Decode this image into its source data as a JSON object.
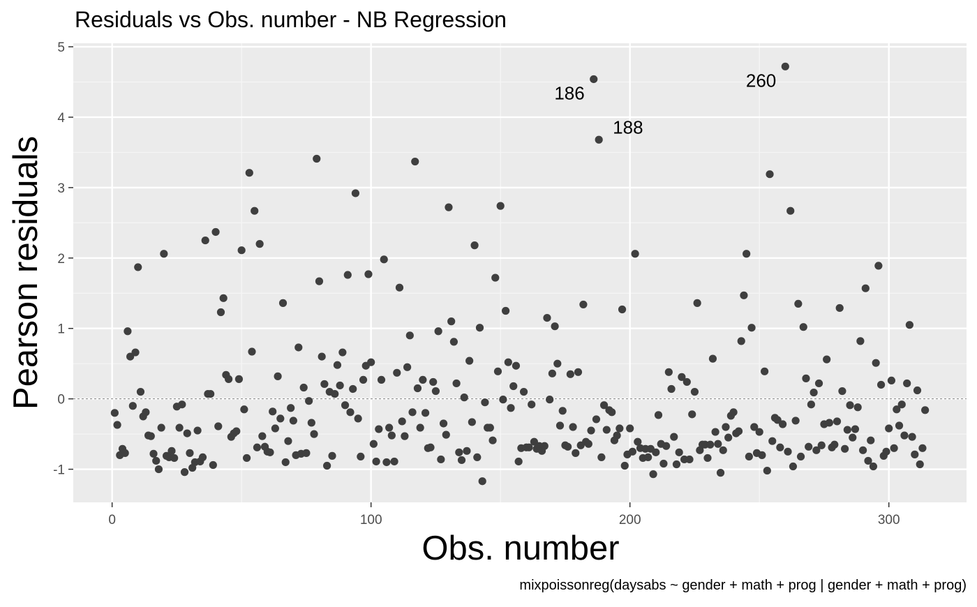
{
  "chart_data": {
    "type": "scatter",
    "title": "Residuals vs Obs. number - NB Regression",
    "xlabel": "Obs. number",
    "ylabel": "Pearson residuals",
    "caption": "mixpoissonreg(daysabs ~ gender + math + prog | gender + math + prog)",
    "xlim": [
      -15,
      330
    ],
    "ylim": [
      -1.47,
      5.05
    ],
    "x_ticks": [
      0,
      100,
      200,
      300
    ],
    "y_ticks": [
      -1,
      0,
      1,
      2,
      3,
      4,
      5
    ],
    "grid": true,
    "reference_line": {
      "y": 0,
      "style": "dashed"
    },
    "colors": {
      "panel_background": "#EBEBEB",
      "grid_major": "#FFFFFF",
      "point": "#3F3F3F",
      "reference_line": "#7F7F7F",
      "tick_text": "#4D4D4D"
    },
    "point_labels": [
      {
        "x": 186,
        "label": "186",
        "position": "below-left"
      },
      {
        "x": 188,
        "label": "188",
        "position": "above-right"
      },
      {
        "x": 260,
        "label": "260",
        "position": "below-left"
      }
    ],
    "points": [
      [
        1,
        -0.2
      ],
      [
        2,
        -0.37
      ],
      [
        3,
        -0.8
      ],
      [
        4,
        -0.71
      ],
      [
        5,
        -0.77
      ],
      [
        6,
        0.96
      ],
      [
        7,
        0.6
      ],
      [
        8,
        -0.1
      ],
      [
        9,
        0.66
      ],
      [
        10,
        1.87
      ],
      [
        11,
        0.1
      ],
      [
        12,
        -0.25
      ],
      [
        13,
        -0.19
      ],
      [
        14,
        -0.52
      ],
      [
        15,
        -0.53
      ],
      [
        16,
        -0.78
      ],
      [
        17,
        -0.88
      ],
      [
        18,
        -1
      ],
      [
        19,
        -0.41
      ],
      [
        20,
        2.06
      ],
      [
        21,
        -0.81
      ],
      [
        22,
        -0.83
      ],
      [
        23,
        -0.74
      ],
      [
        24,
        -0.84
      ],
      [
        25,
        -0.11
      ],
      [
        26,
        -0.41
      ],
      [
        27,
        -0.08
      ],
      [
        28,
        -1.04
      ],
      [
        29,
        -0.49
      ],
      [
        30,
        -0.77
      ],
      [
        31,
        -0.98
      ],
      [
        32,
        -0.9
      ],
      [
        33,
        -0.45
      ],
      [
        34,
        -0.89
      ],
      [
        35,
        -0.83
      ],
      [
        36,
        2.25
      ],
      [
        37,
        0.07
      ],
      [
        38,
        0.07
      ],
      [
        39,
        -0.94
      ],
      [
        40,
        2.37
      ],
      [
        41,
        -0.39
      ],
      [
        42,
        1.23
      ],
      [
        43,
        1.43
      ],
      [
        44,
        0.34
      ],
      [
        45,
        0.28
      ],
      [
        46,
        -0.54
      ],
      [
        47,
        -0.49
      ],
      [
        48,
        -0.46
      ],
      [
        49,
        0.28
      ],
      [
        50,
        2.11
      ],
      [
        51,
        -0.15
      ],
      [
        52,
        -0.84
      ],
      [
        53,
        3.21
      ],
      [
        54,
        0.67
      ],
      [
        55,
        2.67
      ],
      [
        56,
        -0.69
      ],
      [
        57,
        2.2
      ],
      [
        58,
        -0.53
      ],
      [
        59,
        -0.68
      ],
      [
        60,
        -0.75
      ],
      [
        61,
        -0.76
      ],
      [
        62,
        -0.18
      ],
      [
        63,
        -0.42
      ],
      [
        64,
        0.32
      ],
      [
        65,
        -0.28
      ],
      [
        66,
        1.36
      ],
      [
        67,
        -0.9
      ],
      [
        68,
        -0.6
      ],
      [
        69,
        -0.13
      ],
      [
        70,
        -0.31
      ],
      [
        71,
        -0.8
      ],
      [
        72,
        0.73
      ],
      [
        73,
        -0.78
      ],
      [
        74,
        0.16
      ],
      [
        75,
        -0.77
      ],
      [
        76,
        -0.03
      ],
      [
        77,
        -0.34
      ],
      [
        78,
        -0.5
      ],
      [
        79,
        3.41
      ],
      [
        80,
        1.67
      ],
      [
        81,
        0.6
      ],
      [
        82,
        0.21
      ],
      [
        83,
        -0.95
      ],
      [
        84,
        0.1
      ],
      [
        85,
        -0.81
      ],
      [
        86,
        0.07
      ],
      [
        87,
        0.48
      ],
      [
        88,
        0.19
      ],
      [
        89,
        0.66
      ],
      [
        90,
        -0.09
      ],
      [
        91,
        1.76
      ],
      [
        92,
        -0.19
      ],
      [
        93,
        0.14
      ],
      [
        94,
        2.92
      ],
      [
        95,
        -0.28
      ],
      [
        96,
        -0.82
      ],
      [
        97,
        0.27
      ],
      [
        98,
        0.47
      ],
      [
        99,
        1.77
      ],
      [
        100,
        0.52
      ],
      [
        101,
        -0.64
      ],
      [
        102,
        -0.89
      ],
      [
        103,
        -0.43
      ],
      [
        104,
        0.27
      ],
      [
        105,
        1.98
      ],
      [
        106,
        -0.9
      ],
      [
        107,
        -0.41
      ],
      [
        108,
        -0.52
      ],
      [
        109,
        -0.89
      ],
      [
        110,
        0.37
      ],
      [
        111,
        1.58
      ],
      [
        112,
        -0.32
      ],
      [
        113,
        -0.53
      ],
      [
        114,
        0.45
      ],
      [
        115,
        0.9
      ],
      [
        116,
        -0.19
      ],
      [
        117,
        3.37
      ],
      [
        118,
        0.15
      ],
      [
        119,
        -0.41
      ],
      [
        120,
        0.27
      ],
      [
        121,
        -0.2
      ],
      [
        122,
        -0.7
      ],
      [
        123,
        -0.69
      ],
      [
        124,
        0.24
      ],
      [
        125,
        0.11
      ],
      [
        126,
        0.96
      ],
      [
        127,
        -0.86
      ],
      [
        128,
        -0.35
      ],
      [
        129,
        -0.51
      ],
      [
        130,
        2.72
      ],
      [
        131,
        1.1
      ],
      [
        132,
        0.81
      ],
      [
        133,
        0.22
      ],
      [
        134,
        -0.76
      ],
      [
        135,
        -0.87
      ],
      [
        136,
        0.02
      ],
      [
        137,
        -0.74
      ],
      [
        138,
        0.54
      ],
      [
        139,
        -0.33
      ],
      [
        140,
        2.18
      ],
      [
        141,
        -0.83
      ],
      [
        142,
        1.01
      ],
      [
        143,
        -1.17
      ],
      [
        144,
        -0.05
      ],
      [
        145,
        -0.41
      ],
      [
        146,
        -0.41
      ],
      [
        147,
        -0.59
      ],
      [
        148,
        1.72
      ],
      [
        149,
        0.39
      ],
      [
        150,
        2.74
      ],
      [
        151,
        -0.01
      ],
      [
        152,
        1.25
      ],
      [
        153,
        0.52
      ],
      [
        154,
        -0.13
      ],
      [
        155,
        0.18
      ],
      [
        156,
        0.47
      ],
      [
        157,
        -0.89
      ],
      [
        158,
        -0.7
      ],
      [
        159,
        0.1
      ],
      [
        160,
        -0.69
      ],
      [
        161,
        -0.69
      ],
      [
        162,
        -0.08
      ],
      [
        163,
        -0.61
      ],
      [
        164,
        -0.71
      ],
      [
        165,
        -0.67
      ],
      [
        166,
        -0.74
      ],
      [
        167,
        -0.67
      ],
      [
        168,
        1.15
      ],
      [
        169,
        -0.01
      ],
      [
        170,
        0.36
      ],
      [
        171,
        1.03
      ],
      [
        172,
        0.5
      ],
      [
        173,
        -0.38
      ],
      [
        174,
        -0.17
      ],
      [
        175,
        -0.66
      ],
      [
        176,
        -0.68
      ],
      [
        177,
        0.35
      ],
      [
        178,
        -0.4
      ],
      [
        179,
        -0.77
      ],
      [
        180,
        0.38
      ],
      [
        181,
        -0.66
      ],
      [
        182,
        1.34
      ],
      [
        183,
        -0.61
      ],
      [
        184,
        -0.64
      ],
      [
        185,
        -0.45
      ],
      [
        186,
        4.54
      ],
      [
        187,
        -0.29
      ],
      [
        188,
        3.68
      ],
      [
        189,
        -0.83
      ],
      [
        190,
        -0.09
      ],
      [
        191,
        -0.44
      ],
      [
        192,
        -0.16
      ],
      [
        193,
        -0.19
      ],
      [
        194,
        -0.59
      ],
      [
        195,
        -0.52
      ],
      [
        196,
        -0.42
      ],
      [
        197,
        1.27
      ],
      [
        198,
        -0.95
      ],
      [
        199,
        -0.79
      ],
      [
        200,
        -0.42
      ],
      [
        201,
        -0.75
      ],
      [
        202,
        2.06
      ],
      [
        203,
        -0.61
      ],
      [
        204,
        -0.7
      ],
      [
        205,
        -0.84
      ],
      [
        206,
        -0.71
      ],
      [
        207,
        -0.83
      ],
      [
        208,
        -0.71
      ],
      [
        209,
        -1.07
      ],
      [
        210,
        -0.76
      ],
      [
        211,
        -0.23
      ],
      [
        212,
        -0.64
      ],
      [
        213,
        -0.92
      ],
      [
        214,
        -0.67
      ],
      [
        215,
        0.38
      ],
      [
        216,
        0.14
      ],
      [
        217,
        -0.54
      ],
      [
        218,
        -0.93
      ],
      [
        219,
        -0.76
      ],
      [
        220,
        0.31
      ],
      [
        221,
        -0.86
      ],
      [
        222,
        0.24
      ],
      [
        223,
        -0.86
      ],
      [
        224,
        -0.22
      ],
      [
        225,
        0.1
      ],
      [
        226,
        1.36
      ],
      [
        227,
        -0.73
      ],
      [
        228,
        -0.65
      ],
      [
        229,
        -0.65
      ],
      [
        230,
        -0.84
      ],
      [
        231,
        -0.65
      ],
      [
        232,
        0.57
      ],
      [
        233,
        -0.47
      ],
      [
        234,
        -0.64
      ],
      [
        235,
        -1.05
      ],
      [
        236,
        -0.73
      ],
      [
        237,
        -0.4
      ],
      [
        238,
        -0.55
      ],
      [
        239,
        -0.24
      ],
      [
        240,
        -0.19
      ],
      [
        241,
        -0.49
      ],
      [
        242,
        -0.46
      ],
      [
        243,
        0.82
      ],
      [
        244,
        1.47
      ],
      [
        245,
        2.06
      ],
      [
        246,
        -0.82
      ],
      [
        247,
        1.01
      ],
      [
        248,
        -0.4
      ],
      [
        249,
        -0.77
      ],
      [
        250,
        -0.47
      ],
      [
        251,
        -0.8
      ],
      [
        252,
        0.39
      ],
      [
        253,
        -1.02
      ],
      [
        254,
        3.19
      ],
      [
        255,
        -0.6
      ],
      [
        256,
        -0.27
      ],
      [
        257,
        -0.3
      ],
      [
        258,
        -0.69
      ],
      [
        259,
        -0.36
      ],
      [
        260,
        4.72
      ],
      [
        261,
        -0.75
      ],
      [
        262,
        2.67
      ],
      [
        263,
        -0.96
      ],
      [
        264,
        -0.31
      ],
      [
        265,
        1.35
      ],
      [
        266,
        -0.82
      ],
      [
        267,
        1.02
      ],
      [
        268,
        0.29
      ],
      [
        269,
        -0.68
      ],
      [
        270,
        -0.08
      ],
      [
        271,
        0.09
      ],
      [
        272,
        -0.73
      ],
      [
        273,
        0.22
      ],
      [
        274,
        -0.66
      ],
      [
        275,
        -0.36
      ],
      [
        276,
        0.56
      ],
      [
        277,
        -0.34
      ],
      [
        278,
        -0.69
      ],
      [
        279,
        -0.65
      ],
      [
        280,
        -0.32
      ],
      [
        281,
        1.29
      ],
      [
        282,
        0.11
      ],
      [
        283,
        -0.71
      ],
      [
        284,
        -0.44
      ],
      [
        285,
        -0.09
      ],
      [
        286,
        -0.55
      ],
      [
        287,
        -0.43
      ],
      [
        288,
        -0.12
      ],
      [
        289,
        0.82
      ],
      [
        290,
        -0.73
      ],
      [
        291,
        1.57
      ],
      [
        292,
        -0.88
      ],
      [
        293,
        -0.59
      ],
      [
        294,
        -0.96
      ],
      [
        295,
        0.51
      ],
      [
        296,
        1.89
      ],
      [
        297,
        0.2
      ],
      [
        298,
        -0.81
      ],
      [
        299,
        -0.75
      ],
      [
        300,
        -0.42
      ],
      [
        301,
        0.26
      ],
      [
        302,
        -0.7
      ],
      [
        303,
        -0.15
      ],
      [
        304,
        -0.38
      ],
      [
        305,
        -0.08
      ],
      [
        306,
        -0.52
      ],
      [
        307,
        0.22
      ],
      [
        308,
        1.05
      ],
      [
        309,
        -0.54
      ],
      [
        310,
        -0.79
      ],
      [
        311,
        0.12
      ],
      [
        312,
        -0.93
      ],
      [
        313,
        -0.7
      ],
      [
        314,
        -0.16
      ]
    ]
  }
}
